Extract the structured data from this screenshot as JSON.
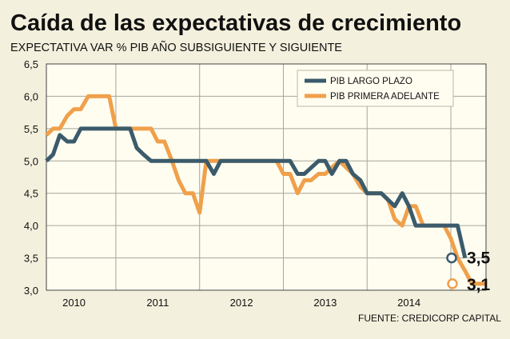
{
  "chart_data": {
    "type": "line",
    "title": "Caída de las expectativas de crecimiento",
    "subtitle": "EXPECTATIVA VAR % PIB AÑO SUBSIGUIENTE Y SIGUIENTE",
    "source": "FUENTE: CREDICORP CAPITAL",
    "ylim": [
      3.0,
      6.5
    ],
    "yticks": [
      "3,0",
      "3,5",
      "4,0",
      "4,5",
      "5,0",
      "5,5",
      "6,0",
      "6,5"
    ],
    "ytick_values": [
      3.0,
      3.5,
      4.0,
      4.5,
      5.0,
      5.5,
      6.0,
      6.5
    ],
    "x_start": 2009.67,
    "x_end": 2014.92,
    "x_gridlines": [
      2010.5,
      2011.5,
      2012.5,
      2013.5,
      2014.5
    ],
    "x_label_positions": [
      2010,
      2011,
      2012,
      2013,
      2014
    ],
    "x_labels": [
      "2010",
      "2011",
      "2012",
      "2013",
      "2014"
    ],
    "series": [
      {
        "name": "PIB LARGO PLAZO",
        "color": "#3b5b6b",
        "end_label": "3,5",
        "points": [
          [
            2009.67,
            5.0
          ],
          [
            2009.75,
            5.1
          ],
          [
            2009.83,
            5.4
          ],
          [
            2009.92,
            5.3
          ],
          [
            2010.0,
            5.3
          ],
          [
            2010.08,
            5.5
          ],
          [
            2010.5,
            5.5
          ],
          [
            2010.67,
            5.5
          ],
          [
            2010.75,
            5.2
          ],
          [
            2010.83,
            5.1
          ],
          [
            2010.92,
            5.0
          ],
          [
            2011.58,
            5.0
          ],
          [
            2011.67,
            4.8
          ],
          [
            2011.75,
            5.0
          ],
          [
            2012.58,
            5.0
          ],
          [
            2012.67,
            4.8
          ],
          [
            2012.75,
            4.8
          ],
          [
            2012.92,
            5.0
          ],
          [
            2013.0,
            5.0
          ],
          [
            2013.08,
            4.8
          ],
          [
            2013.17,
            5.0
          ],
          [
            2013.25,
            5.0
          ],
          [
            2013.33,
            4.8
          ],
          [
            2013.42,
            4.7
          ],
          [
            2013.5,
            4.5
          ],
          [
            2013.67,
            4.5
          ],
          [
            2013.75,
            4.4
          ],
          [
            2013.83,
            4.3
          ],
          [
            2013.92,
            4.5
          ],
          [
            2014.0,
            4.3
          ],
          [
            2014.08,
            4.0
          ],
          [
            2014.5,
            4.0
          ],
          [
            2014.58,
            4.0
          ],
          [
            2014.67,
            3.5
          ]
        ]
      },
      {
        "name": "PIB PRIMERA ADELANTE",
        "color": "#f0a04b",
        "end_label": "3,1",
        "points": [
          [
            2009.67,
            5.4
          ],
          [
            2009.75,
            5.5
          ],
          [
            2009.83,
            5.5
          ],
          [
            2009.92,
            5.7
          ],
          [
            2010.0,
            5.8
          ],
          [
            2010.08,
            5.8
          ],
          [
            2010.17,
            6.0
          ],
          [
            2010.42,
            6.0
          ],
          [
            2010.5,
            5.5
          ],
          [
            2010.92,
            5.5
          ],
          [
            2011.0,
            5.3
          ],
          [
            2011.08,
            5.3
          ],
          [
            2011.17,
            5.0
          ],
          [
            2011.25,
            4.7
          ],
          [
            2011.33,
            4.5
          ],
          [
            2011.42,
            4.5
          ],
          [
            2011.5,
            4.2
          ],
          [
            2011.58,
            5.0
          ],
          [
            2012.42,
            5.0
          ],
          [
            2012.5,
            4.8
          ],
          [
            2012.58,
            4.8
          ],
          [
            2012.67,
            4.5
          ],
          [
            2012.75,
            4.7
          ],
          [
            2012.83,
            4.7
          ],
          [
            2012.92,
            4.8
          ],
          [
            2013.0,
            4.8
          ],
          [
            2013.08,
            4.9
          ],
          [
            2013.17,
            5.0
          ],
          [
            2013.25,
            4.9
          ],
          [
            2013.33,
            4.8
          ],
          [
            2013.42,
            4.6
          ],
          [
            2013.5,
            4.5
          ],
          [
            2013.67,
            4.5
          ],
          [
            2013.75,
            4.4
          ],
          [
            2013.83,
            4.1
          ],
          [
            2013.92,
            4.0
          ],
          [
            2014.0,
            4.3
          ],
          [
            2014.08,
            4.3
          ],
          [
            2014.17,
            4.0
          ],
          [
            2014.42,
            4.0
          ],
          [
            2014.5,
            3.8
          ],
          [
            2014.58,
            3.5
          ],
          [
            2014.67,
            3.3
          ],
          [
            2014.75,
            3.1
          ],
          [
            2014.92,
            3.1
          ]
        ]
      }
    ]
  }
}
